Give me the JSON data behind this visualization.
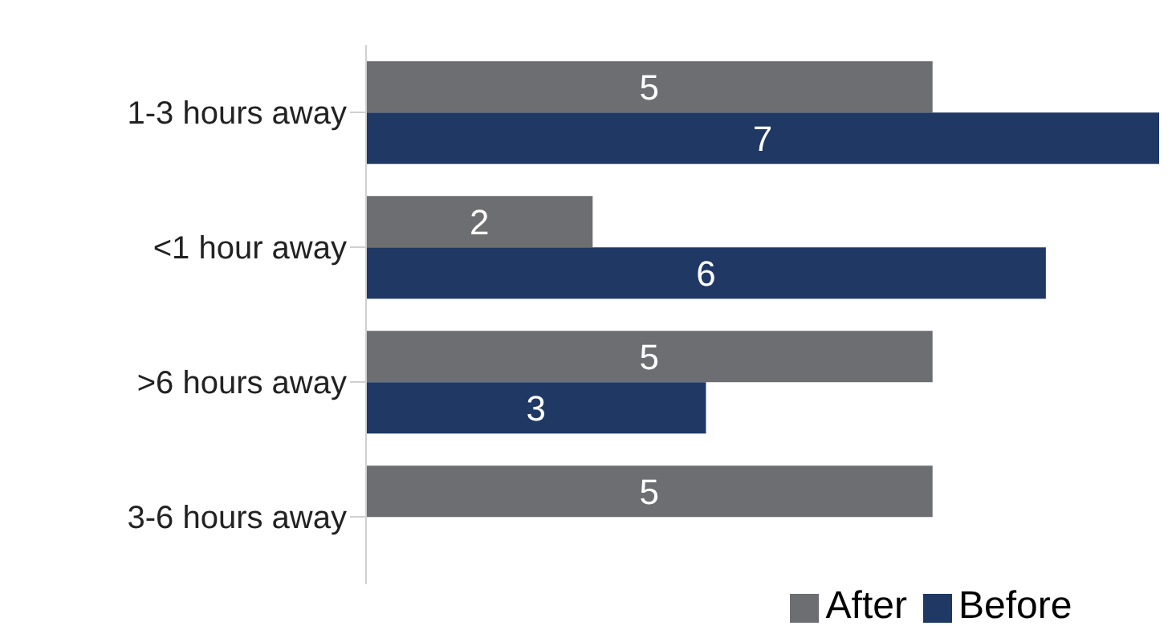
{
  "chart_data": {
    "type": "bar",
    "orientation": "horizontal",
    "categories": [
      "1-3 hours away",
      "<1 hour away",
      ">6 hours away",
      "3-6 hours away"
    ],
    "series": [
      {
        "name": "After",
        "color": "#6d6e71",
        "values": [
          5,
          2,
          5,
          5
        ]
      },
      {
        "name": "Before",
        "color": "#1f3864",
        "values": [
          7,
          6,
          3,
          null
        ]
      }
    ],
    "xlim": [
      0,
      7
    ],
    "data_labels": true,
    "legend": "bottom",
    "grid": false
  }
}
